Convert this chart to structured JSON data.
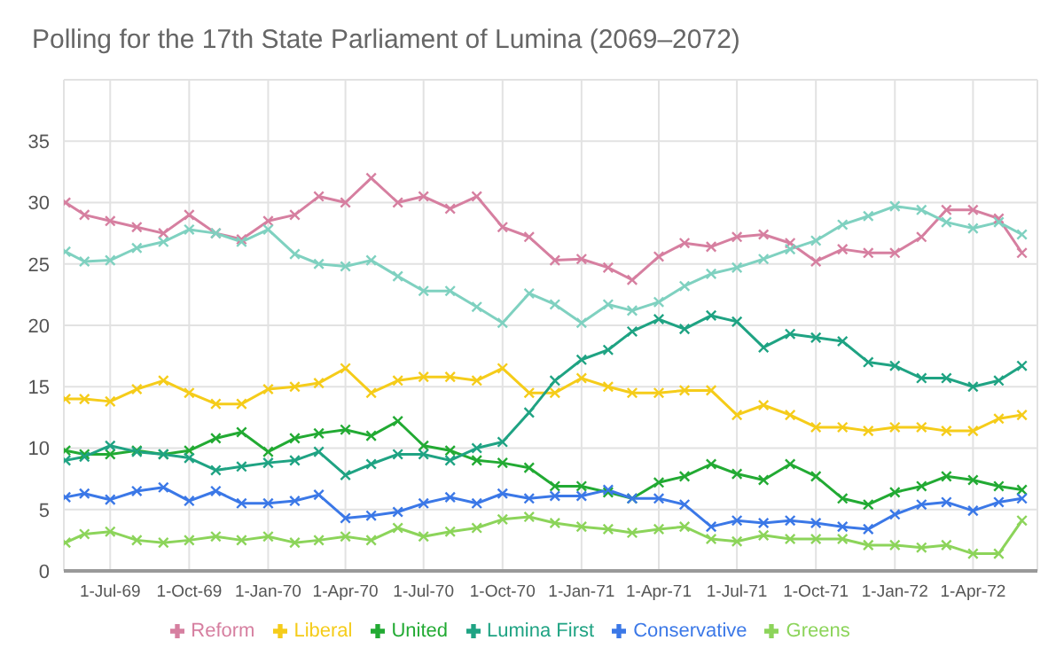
{
  "chart_data": {
    "type": "line",
    "title": "Polling for the 17th State Parliament of Lumina (2069–2072)",
    "x": [
      "1969-05-10",
      "1969-06-01",
      "1969-07-01",
      "1969-08-01",
      "1969-09-01",
      "1969-10-01",
      "1969-11-01",
      "1969-12-01",
      "1970-01-01",
      "1970-02-01",
      "1970-03-01",
      "1970-04-01",
      "1970-05-01",
      "1970-06-01",
      "1970-07-01",
      "1970-08-01",
      "1970-09-01",
      "1970-10-01",
      "1970-11-01",
      "1970-12-01",
      "1971-01-01",
      "1971-02-01",
      "1971-03-01",
      "1971-04-01",
      "1971-05-01",
      "1971-06-01",
      "1971-07-01",
      "1971-08-01",
      "1971-09-01",
      "1971-10-01",
      "1971-11-01",
      "1971-12-01",
      "1972-01-01",
      "1972-02-01",
      "1972-03-01",
      "1972-04-01",
      "1972-05-01",
      "1972-05-28"
    ],
    "series": [
      {
        "name": "Reform",
        "color": "#d67fa0",
        "values": [
          30,
          29,
          28.5,
          28,
          27.5,
          29,
          27.5,
          27,
          28.5,
          29,
          30.5,
          30,
          32,
          30,
          30.5,
          29.5,
          30.5,
          28,
          27.2,
          25.3,
          25.4,
          24.7,
          23.7,
          25.6,
          26.7,
          26.4,
          27.2,
          27.4,
          26.7,
          25.2,
          26.2,
          25.9,
          25.9,
          27.2,
          29.4,
          29.4,
          28.7,
          25.9
        ]
      },
      {
        "color": "#7fd1c0",
        "values": [
          26,
          25.2,
          25.3,
          26.3,
          26.8,
          27.8,
          27.5,
          26.8,
          27.8,
          25.8,
          25,
          24.8,
          25.3,
          24,
          22.8,
          22.8,
          21.5,
          20.2,
          22.6,
          21.7,
          20.2,
          21.7,
          21.2,
          21.9,
          23.2,
          24.2,
          24.7,
          25.4,
          26.2,
          26.9,
          28.2,
          28.9,
          29.7,
          29.4,
          28.4,
          27.9,
          28.4,
          27.4
        ]
      },
      {
        "name": "Liberal",
        "color": "#f5cc1a",
        "values": [
          14,
          14,
          13.8,
          14.8,
          15.5,
          14.5,
          13.6,
          13.6,
          14.8,
          15,
          15.3,
          16.5,
          14.5,
          15.5,
          15.8,
          15.8,
          15.5,
          16.5,
          14.5,
          14.5,
          15.7,
          15,
          14.5,
          14.5,
          14.7,
          14.7,
          12.7,
          13.5,
          12.7,
          11.7,
          11.7,
          11.4,
          11.7,
          11.7,
          11.4,
          11.4,
          12.4,
          12.7
        ]
      },
      {
        "name": "United",
        "color": "#22aa33",
        "values": [
          9.8,
          9.5,
          9.5,
          9.8,
          9.5,
          9.8,
          10.8,
          11.3,
          9.7,
          10.8,
          11.2,
          11.5,
          11,
          12.2,
          10.2,
          9.8,
          9,
          8.8,
          8.4,
          6.9,
          6.9,
          6.4,
          5.9,
          7.2,
          7.7,
          8.7,
          7.9,
          7.4,
          8.7,
          7.7,
          5.9,
          5.4,
          6.4,
          6.9,
          7.7,
          7.4,
          6.9,
          6.6
        ]
      },
      {
        "name": "Lumina First",
        "color": "#1fa383",
        "values": [
          9,
          9.3,
          10.2,
          9.7,
          9.5,
          9.2,
          8.2,
          8.5,
          8.8,
          9,
          9.7,
          7.8,
          8.7,
          9.5,
          9.5,
          9,
          10,
          10.5,
          12.9,
          15.5,
          17.2,
          18,
          19.5,
          20.5,
          19.7,
          20.8,
          20.3,
          18.2,
          19.3,
          19,
          18.7,
          17,
          16.7,
          15.7,
          15.7,
          15,
          15.5,
          16.7
        ]
      },
      {
        "name": "Conservative",
        "color": "#3b78e7",
        "values": [
          6,
          6.3,
          5.8,
          6.5,
          6.8,
          5.7,
          6.5,
          5.5,
          5.5,
          5.7,
          6.2,
          4.3,
          4.5,
          4.8,
          5.5,
          6,
          5.5,
          6.3,
          5.9,
          6.1,
          6.1,
          6.6,
          5.9,
          5.9,
          5.4,
          3.6,
          4.1,
          3.9,
          4.1,
          3.9,
          3.6,
          3.4,
          4.6,
          5.4,
          5.6,
          4.9,
          5.6,
          5.9
        ]
      },
      {
        "name": "Greens",
        "color": "#8cd45a",
        "values": [
          2.3,
          3,
          3.2,
          2.5,
          2.3,
          2.5,
          2.8,
          2.5,
          2.8,
          2.3,
          2.5,
          2.8,
          2.5,
          3.5,
          2.8,
          3.2,
          3.5,
          4.2,
          4.4,
          3.9,
          3.6,
          3.4,
          3.1,
          3.4,
          3.6,
          2.6,
          2.4,
          2.9,
          2.6,
          2.6,
          2.6,
          2.1,
          2.1,
          1.9,
          2.1,
          1.4,
          1.4,
          4.1
        ]
      }
    ],
    "xlim": [
      "1969-05-08",
      "1972-06-15"
    ],
    "xticks": [
      {
        "value": "1969-07-01",
        "label": "1-Jul-69"
      },
      {
        "value": "1969-10-01",
        "label": "1-Oct-69"
      },
      {
        "value": "1970-01-01",
        "label": "1-Jan-70"
      },
      {
        "value": "1970-04-01",
        "label": "1-Apr-70"
      },
      {
        "value": "1970-07-01",
        "label": "1-Jul-70"
      },
      {
        "value": "1970-10-01",
        "label": "1-Oct-70"
      },
      {
        "value": "1971-01-01",
        "label": "1-Jan-71"
      },
      {
        "value": "1971-04-01",
        "label": "1-Apr-71"
      },
      {
        "value": "1971-07-01",
        "label": "1-Jul-71"
      },
      {
        "value": "1971-10-01",
        "label": "1-Oct-71"
      },
      {
        "value": "1972-01-01",
        "label": "1-Jan-72"
      },
      {
        "value": "1972-04-01",
        "label": "1-Apr-72"
      }
    ],
    "ylim": [
      0,
      40
    ],
    "yticks": [
      0,
      5,
      10,
      15,
      20,
      25,
      30,
      35,
      {
        "value": 40,
        "label": null
      }
    ],
    "grid": true,
    "legend": "bottom",
    "marker": "cross",
    "line_style": "solid"
  }
}
